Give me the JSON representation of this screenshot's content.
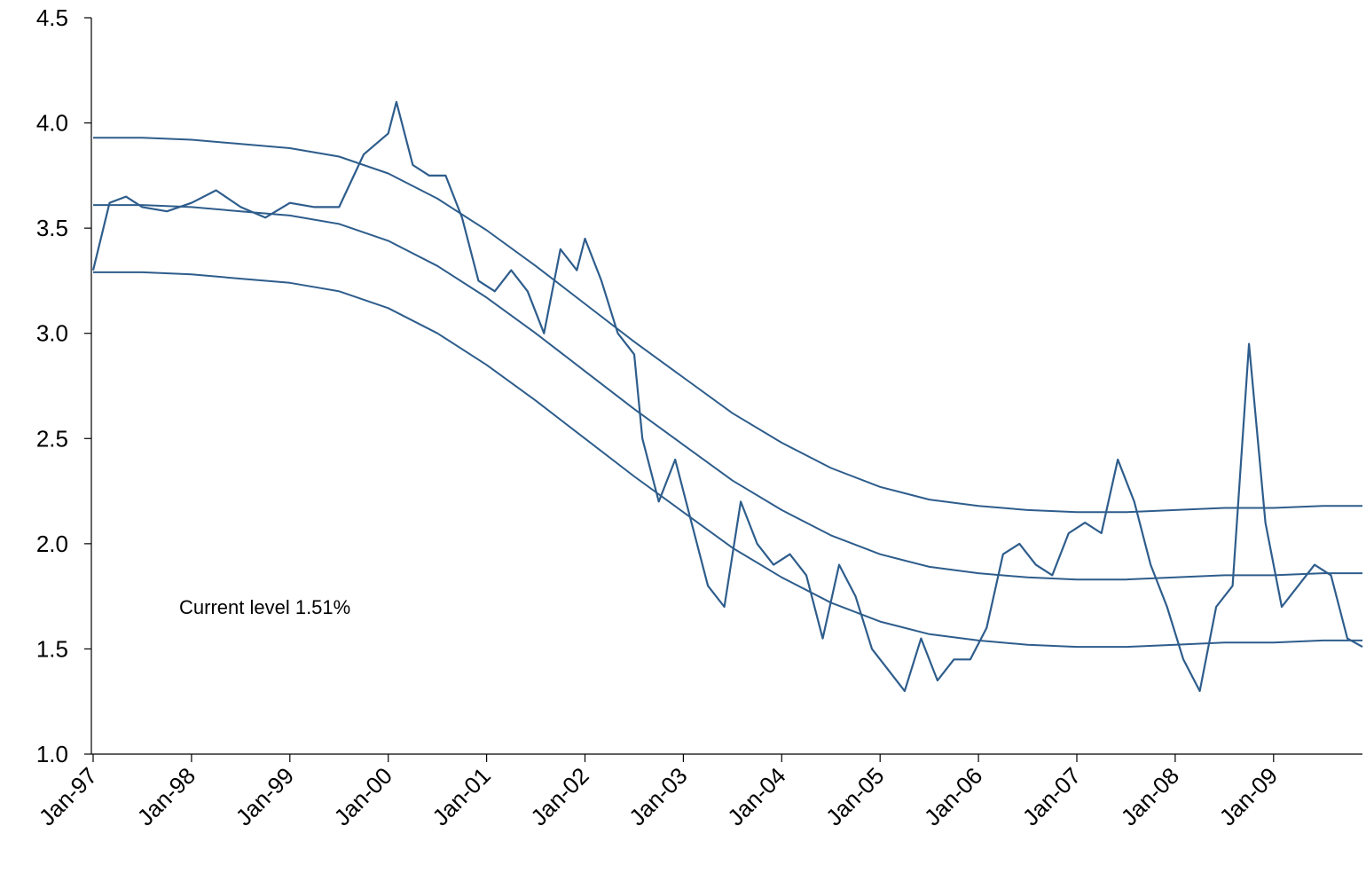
{
  "chart_data": {
    "type": "line",
    "title": "",
    "xlabel": "",
    "ylabel": "",
    "ylim": [
      1.0,
      4.5
    ],
    "y_ticks": [
      "1.0",
      "1.5",
      "2.0",
      "2.5",
      "3.0",
      "3.5",
      "4.0",
      "4.5"
    ],
    "x_ticks": [
      "Jan-97",
      "Jan-98",
      "Jan-99",
      "Jan-00",
      "Jan-01",
      "Jan-02",
      "Jan-03",
      "Jan-04",
      "Jan-05",
      "Jan-06",
      "Jan-07",
      "Jan-08",
      "Jan-09"
    ],
    "x_range": [
      "1997-01",
      "2009-12"
    ],
    "grid": false,
    "legend": "none",
    "line_color": "#2e5d8c",
    "annotation": "Current level 1.51%",
    "series": [
      {
        "x": [
          "1997-01",
          "1997-03",
          "1997-05",
          "1997-07",
          "1997-10",
          "1998-01",
          "1998-04",
          "1998-07",
          "1998-10",
          "1999-01",
          "1999-04",
          "1999-07",
          "1999-10",
          "2000-01",
          "2000-02",
          "2000-04",
          "2000-06",
          "2000-08",
          "2000-10",
          "2000-12",
          "2001-02",
          "2001-04",
          "2001-06",
          "2001-08",
          "2001-10",
          "2001-12",
          "2002-01",
          "2002-03",
          "2002-05",
          "2002-07",
          "2002-08",
          "2002-10",
          "2002-12",
          "2003-02",
          "2003-04",
          "2003-06",
          "2003-08",
          "2003-10",
          "2003-12",
          "2004-02",
          "2004-04",
          "2004-06",
          "2004-08",
          "2004-10",
          "2004-12",
          "2005-02",
          "2005-04",
          "2005-06",
          "2005-08",
          "2005-10",
          "2005-12",
          "2006-02",
          "2006-04",
          "2006-06",
          "2006-08",
          "2006-10",
          "2006-12",
          "2007-02",
          "2007-04",
          "2007-06",
          "2007-08",
          "2007-10",
          "2007-12",
          "2008-02",
          "2008-04",
          "2008-06",
          "2008-08",
          "2008-10",
          "2008-12",
          "2009-02",
          "2009-04",
          "2009-06",
          "2009-08",
          "2009-10",
          "2009-12"
        ],
        "values": [
          3.3,
          3.62,
          3.65,
          3.6,
          3.58,
          3.62,
          3.68,
          3.6,
          3.55,
          3.62,
          3.6,
          3.6,
          3.85,
          3.95,
          4.1,
          3.8,
          3.75,
          3.75,
          3.55,
          3.25,
          3.2,
          3.3,
          3.2,
          3.0,
          3.4,
          3.3,
          3.45,
          3.25,
          3.0,
          2.9,
          2.5,
          2.2,
          2.4,
          2.1,
          1.8,
          1.7,
          2.2,
          2.0,
          1.9,
          1.95,
          1.85,
          1.55,
          1.9,
          1.75,
          1.5,
          1.4,
          1.3,
          1.55,
          1.35,
          1.45,
          1.45,
          1.6,
          1.95,
          2.0,
          1.9,
          1.85,
          2.05,
          2.1,
          2.05,
          2.4,
          2.2,
          1.9,
          1.7,
          1.45,
          1.3,
          1.7,
          1.8,
          2.95,
          2.1,
          1.7,
          1.8,
          1.9,
          1.85,
          1.55,
          1.51
        ]
      },
      {
        "x": [
          "1997-01",
          "1997-07",
          "1998-01",
          "1998-07",
          "1999-01",
          "1999-07",
          "2000-01",
          "2000-07",
          "2001-01",
          "2001-07",
          "2002-01",
          "2002-07",
          "2003-01",
          "2003-07",
          "2004-01",
          "2004-07",
          "2005-01",
          "2005-07",
          "2006-01",
          "2006-07",
          "2007-01",
          "2007-07",
          "2008-01",
          "2008-07",
          "2009-01",
          "2009-07",
          "2009-12"
        ],
        "values": [
          3.61,
          3.61,
          3.6,
          3.58,
          3.56,
          3.52,
          3.44,
          3.32,
          3.17,
          3.0,
          2.82,
          2.64,
          2.47,
          2.3,
          2.16,
          2.04,
          1.95,
          1.89,
          1.86,
          1.84,
          1.83,
          1.83,
          1.84,
          1.85,
          1.85,
          1.86,
          1.86
        ]
      },
      {
        "x": [
          "1997-01",
          "1997-07",
          "1998-01",
          "1998-07",
          "1999-01",
          "1999-07",
          "2000-01",
          "2000-07",
          "2001-01",
          "2001-07",
          "2002-01",
          "2002-07",
          "2003-01",
          "2003-07",
          "2004-01",
          "2004-07",
          "2005-01",
          "2005-07",
          "2006-01",
          "2006-07",
          "2007-01",
          "2007-07",
          "2008-01",
          "2008-07",
          "2009-01",
          "2009-07",
          "2009-12"
        ],
        "values": [
          3.93,
          3.93,
          3.92,
          3.9,
          3.88,
          3.84,
          3.76,
          3.64,
          3.49,
          3.32,
          3.14,
          2.96,
          2.79,
          2.62,
          2.48,
          2.36,
          2.27,
          2.21,
          2.18,
          2.16,
          2.15,
          2.15,
          2.16,
          2.17,
          2.17,
          2.18,
          2.18
        ]
      },
      {
        "x": [
          "1997-01",
          "1997-07",
          "1998-01",
          "1998-07",
          "1999-01",
          "1999-07",
          "2000-01",
          "2000-07",
          "2001-01",
          "2001-07",
          "2002-01",
          "2002-07",
          "2003-01",
          "2003-07",
          "2004-01",
          "2004-07",
          "2005-01",
          "2005-07",
          "2006-01",
          "2006-07",
          "2007-01",
          "2007-07",
          "2008-01",
          "2008-07",
          "2009-01",
          "2009-07",
          "2009-12"
        ],
        "values": [
          3.29,
          3.29,
          3.28,
          3.26,
          3.24,
          3.2,
          3.12,
          3.0,
          2.85,
          2.68,
          2.5,
          2.32,
          2.15,
          1.98,
          1.84,
          1.72,
          1.63,
          1.57,
          1.54,
          1.52,
          1.51,
          1.51,
          1.52,
          1.53,
          1.53,
          1.54,
          1.54
        ]
      }
    ]
  }
}
